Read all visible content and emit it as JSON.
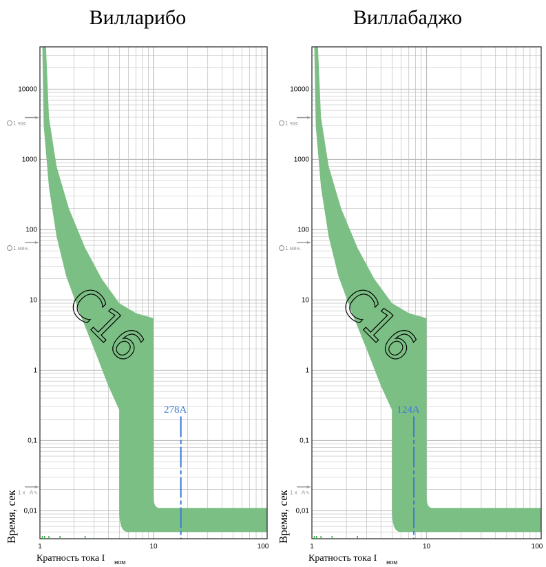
{
  "chart_data": [
    {
      "type": "area",
      "title": "Вилларибо",
      "ylabel": "Время, сек",
      "xlabel": "Кратность тока I",
      "xlabel_sub": "ном",
      "xscale": "log",
      "yscale": "log",
      "xlim": [
        1,
        100
      ],
      "ylim": [
        0.004,
        40000
      ],
      "x_ticks": [
        1,
        10,
        100
      ],
      "x_tick_labels": [
        "1",
        "10",
        "100"
      ],
      "y_ticks": [
        0.01,
        0.1,
        1,
        10,
        100,
        1000,
        10000
      ],
      "y_tick_labels": [
        "0,01",
        "0,1",
        "1",
        "10",
        "100",
        "1000",
        "10000"
      ],
      "grid": true,
      "time_markers": [
        {
          "label": "1 час",
          "y": 3600,
          "icon": "clock-icon"
        },
        {
          "label": "1 мин.",
          "y": 60,
          "icon": "clock-icon"
        },
        {
          "label": "1 x",
          "y": 0.02,
          "icon": "ac-icon"
        }
      ],
      "band_color": "#7cbf85",
      "curve_label": "C16",
      "band": {
        "upper": [
          [
            1.13,
            40000
          ],
          [
            1.2,
            4000
          ],
          [
            1.4,
            800
          ],
          [
            1.8,
            200
          ],
          [
            2.5,
            55
          ],
          [
            3.5,
            20
          ],
          [
            5,
            9
          ],
          [
            7,
            6.5
          ],
          [
            10,
            5.5
          ]
        ],
        "lower": [
          [
            1.05,
            40000
          ],
          [
            1.08,
            3000
          ],
          [
            1.2,
            400
          ],
          [
            1.4,
            80
          ],
          [
            1.7,
            22
          ],
          [
            2.2,
            7
          ],
          [
            3,
            2
          ],
          [
            4,
            0.6
          ],
          [
            5,
            0.27
          ]
        ],
        "instant_low": 5,
        "instant_high": 10,
        "floor_left": 0.01,
        "floor_right": 0.011,
        "floor_min": 0.005
      },
      "annotation": {
        "label": "278A",
        "x": 17.4
      }
    },
    {
      "type": "area",
      "title": "Виллабаджо",
      "ylabel": "Время, сек",
      "xlabel": "Кратность тока I",
      "xlabel_sub": "ном",
      "xscale": "log",
      "yscale": "log",
      "xlim": [
        1,
        100
      ],
      "ylim": [
        0.004,
        40000
      ],
      "x_ticks": [
        1,
        10,
        100
      ],
      "x_tick_labels": [
        "1",
        "10",
        "100"
      ],
      "y_ticks": [
        0.01,
        0.1,
        1,
        10,
        100,
        1000,
        10000
      ],
      "y_tick_labels": [
        "0,01",
        "0,1",
        "1",
        "10",
        "100",
        "1000",
        "10000"
      ],
      "grid": true,
      "time_markers": [
        {
          "label": "1 час",
          "y": 3600,
          "icon": "clock-icon"
        },
        {
          "label": "1 мин.",
          "y": 60,
          "icon": "clock-icon"
        },
        {
          "label": "1 x",
          "y": 0.02,
          "icon": "ac-icon"
        }
      ],
      "band_color": "#7cbf85",
      "curve_label": "C16",
      "band": {
        "upper": [
          [
            1.13,
            40000
          ],
          [
            1.2,
            4000
          ],
          [
            1.4,
            800
          ],
          [
            1.8,
            200
          ],
          [
            2.5,
            55
          ],
          [
            3.5,
            20
          ],
          [
            5,
            9
          ],
          [
            7,
            6.5
          ],
          [
            10,
            5.5
          ]
        ],
        "lower": [
          [
            1.05,
            40000
          ],
          [
            1.08,
            3000
          ],
          [
            1.2,
            400
          ],
          [
            1.4,
            80
          ],
          [
            1.7,
            22
          ],
          [
            2.2,
            7
          ],
          [
            3,
            2
          ],
          [
            4,
            0.6
          ],
          [
            5,
            0.27
          ]
        ],
        "instant_low": 5,
        "instant_high": 10,
        "floor_left": 0.01,
        "floor_right": 0.011,
        "floor_min": 0.005
      },
      "annotation": {
        "label": "124A",
        "x": 7.75
      }
    }
  ]
}
